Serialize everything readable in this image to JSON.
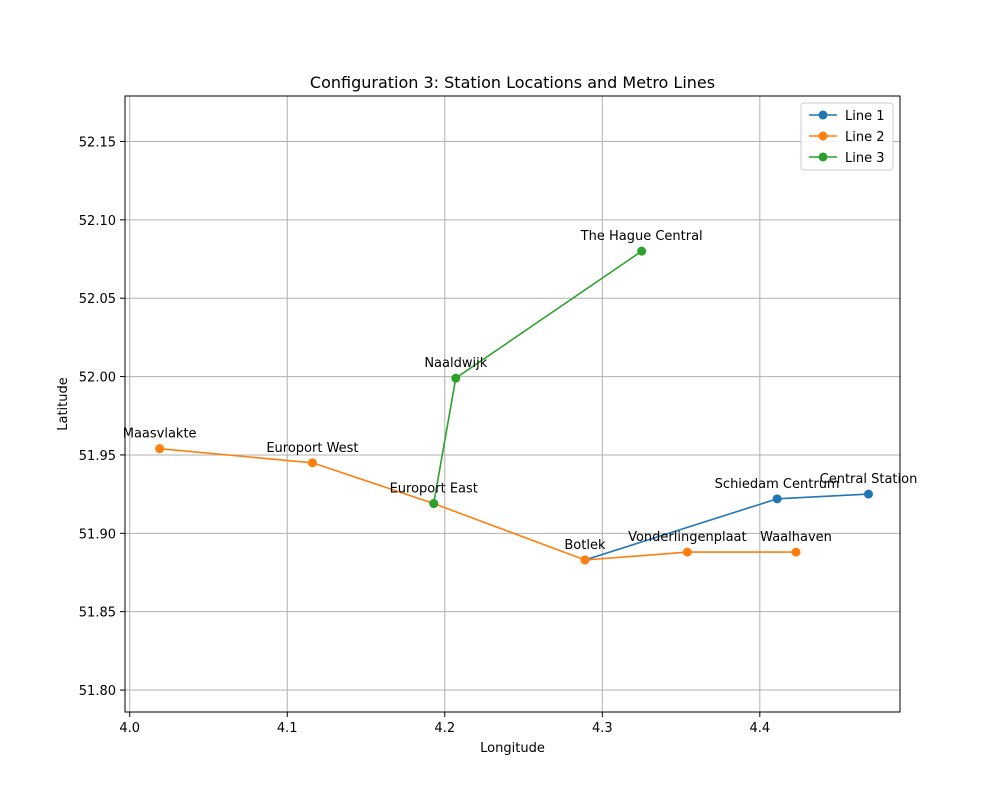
{
  "chart_data": {
    "type": "line",
    "title": "Configuration 3: Station Locations and Metro Lines",
    "xlabel": "Longitude",
    "ylabel": "Latitude",
    "xlim": [
      3.997,
      4.489
    ],
    "ylim": [
      51.786,
      52.179
    ],
    "xticks": [
      4.0,
      4.1,
      4.2,
      4.3,
      4.4
    ],
    "xtick_labels": [
      "4.0",
      "4.1",
      "4.2",
      "4.3",
      "4.4"
    ],
    "yticks": [
      51.8,
      51.85,
      51.9,
      51.95,
      52.0,
      52.05,
      52.1,
      52.15
    ],
    "ytick_labels": [
      "51.80",
      "51.85",
      "51.90",
      "51.95",
      "52.00",
      "52.05",
      "52.10",
      "52.15"
    ],
    "grid": true,
    "legend_position": "top-right",
    "series": [
      {
        "name": "Line 1",
        "color": "#1f77b4",
        "points": [
          {
            "station": "Central Station",
            "x": 4.469,
            "y": 51.925
          },
          {
            "station": "Schiedam Centrum",
            "x": 4.411,
            "y": 51.922
          },
          {
            "station": "Botlek",
            "x": 4.289,
            "y": 51.883
          }
        ]
      },
      {
        "name": "Line 2",
        "color": "#ff7f0e",
        "points": [
          {
            "station": "Maasvlakte",
            "x": 4.019,
            "y": 51.954
          },
          {
            "station": "Europort West",
            "x": 4.116,
            "y": 51.945
          },
          {
            "station": "Europort East",
            "x": 4.193,
            "y": 51.919
          },
          {
            "station": "Botlek",
            "x": 4.289,
            "y": 51.883
          },
          {
            "station": "Vonderlingenplaat",
            "x": 4.354,
            "y": 51.888
          },
          {
            "station": "Waalhaven",
            "x": 4.423,
            "y": 51.888
          }
        ]
      },
      {
        "name": "Line 3",
        "color": "#2ca02c",
        "points": [
          {
            "station": "Europort East",
            "x": 4.193,
            "y": 51.919
          },
          {
            "station": "Naaldwijk",
            "x": 4.207,
            "y": 51.999
          },
          {
            "station": "The Hague Central",
            "x": 4.325,
            "y": 52.08
          }
        ]
      }
    ],
    "station_labels": [
      {
        "name": "Maasvlakte",
        "x": 4.019,
        "y": 51.954
      },
      {
        "name": "Europort West",
        "x": 4.116,
        "y": 51.945
      },
      {
        "name": "Europort East",
        "x": 4.193,
        "y": 51.919
      },
      {
        "name": "Naaldwijk",
        "x": 4.207,
        "y": 51.999
      },
      {
        "name": "The Hague Central",
        "x": 4.325,
        "y": 52.08
      },
      {
        "name": "Botlek",
        "x": 4.289,
        "y": 51.883
      },
      {
        "name": "Vonderlingenplaat",
        "x": 4.354,
        "y": 51.888
      },
      {
        "name": "Waalhaven",
        "x": 4.423,
        "y": 51.888
      },
      {
        "name": "Schiedam Centrum",
        "x": 4.411,
        "y": 51.922
      },
      {
        "name": "Central Station",
        "x": 4.469,
        "y": 51.925
      }
    ]
  }
}
